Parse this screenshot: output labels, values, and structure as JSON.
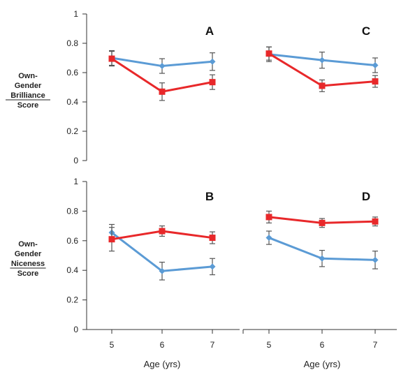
{
  "chart_data": [
    {
      "type": "line",
      "panel": "A",
      "ylabel": [
        "Own-",
        "Gender",
        "Brilliance",
        "Score"
      ],
      "x": [
        5,
        6,
        7
      ],
      "xlabel": "",
      "ylim": [
        0,
        1
      ],
      "yticks": [
        "0",
        "0.2",
        "0.4",
        "0.6",
        "0.8",
        "1"
      ],
      "series": [
        {
          "color": "#5b9bd5",
          "marker": "diamond",
          "values": [
            0.7,
            0.645,
            0.675
          ],
          "err": [
            0.05,
            0.05,
            0.06
          ]
        },
        {
          "color": "#e8282a",
          "marker": "square",
          "values": [
            0.695,
            0.47,
            0.535
          ],
          "err": [
            0.05,
            0.06,
            0.05
          ]
        }
      ]
    },
    {
      "type": "line",
      "panel": "C",
      "x": [
        5,
        6,
        7
      ],
      "xlabel": "",
      "ylim": [
        0,
        1
      ],
      "series": [
        {
          "color": "#5b9bd5",
          "marker": "diamond",
          "values": [
            0.725,
            0.685,
            0.65
          ],
          "err": [
            0.05,
            0.055,
            0.05
          ]
        },
        {
          "color": "#e8282a",
          "marker": "square",
          "values": [
            0.73,
            0.51,
            0.54
          ],
          "err": [
            0.045,
            0.04,
            0.04
          ]
        }
      ]
    },
    {
      "type": "line",
      "panel": "B",
      "ylabel": [
        "Own-",
        "Gender",
        "Niceness",
        "Score"
      ],
      "x": [
        5,
        6,
        7
      ],
      "xlabel": "Age (yrs)",
      "xticks": [
        "5",
        "6",
        "7"
      ],
      "ylim": [
        0,
        1
      ],
      "yticks": [
        "0",
        "0.2",
        "0.4",
        "0.6",
        "0.8",
        "1"
      ],
      "series": [
        {
          "color": "#5b9bd5",
          "marker": "diamond",
          "values": [
            0.655,
            0.395,
            0.425
          ],
          "err": [
            0.055,
            0.06,
            0.055
          ]
        },
        {
          "color": "#e8282a",
          "marker": "square",
          "values": [
            0.61,
            0.665,
            0.62
          ],
          "err": [
            0.08,
            0.035,
            0.04
          ]
        }
      ]
    },
    {
      "type": "line",
      "panel": "D",
      "x": [
        5,
        6,
        7
      ],
      "xlabel": "Age (yrs)",
      "xticks": [
        "5",
        "6",
        "7"
      ],
      "ylim": [
        0,
        1
      ],
      "series": [
        {
          "color": "#5b9bd5",
          "marker": "diamond",
          "values": [
            0.62,
            0.48,
            0.47
          ],
          "err": [
            0.045,
            0.055,
            0.06
          ]
        },
        {
          "color": "#e8282a",
          "marker": "square",
          "values": [
            0.76,
            0.72,
            0.73
          ],
          "err": [
            0.04,
            0.03,
            0.03
          ]
        }
      ]
    }
  ]
}
